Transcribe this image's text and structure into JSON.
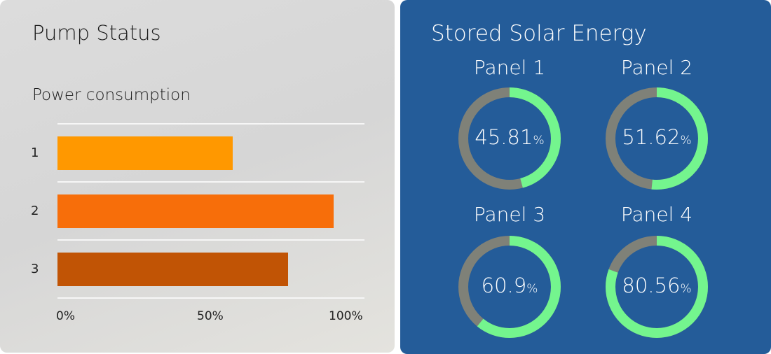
{
  "pump": {
    "title": "Pump Status",
    "subtitle": "Power consumption"
  },
  "solar": {
    "title": "Stored Solar Energy",
    "panels": [
      {
        "label": "Panel 1",
        "value": "45.81",
        "unit": "%",
        "percent": 45.81
      },
      {
        "label": "Panel 2",
        "value": "51.62",
        "unit": "%",
        "percent": 51.62
      },
      {
        "label": "Panel 3",
        "value": "60.9",
        "unit": "%",
        "percent": 60.9
      },
      {
        "label": "Panel 4",
        "value": "80.56",
        "unit": "%",
        "percent": 80.56
      }
    ],
    "colors": {
      "filled": "#74f58e",
      "remaining": "#7f8178"
    }
  },
  "chart_data": {
    "type": "bar",
    "orientation": "horizontal",
    "title": "Power consumption",
    "categories": [
      "1",
      "2",
      "3"
    ],
    "values": [
      57,
      90,
      75
    ],
    "colors": [
      "#ff9800",
      "#f76e0a",
      "#c15405"
    ],
    "xlim": [
      0,
      100
    ],
    "xticks": [
      "0%",
      "50%",
      "100%"
    ],
    "grid": true
  }
}
